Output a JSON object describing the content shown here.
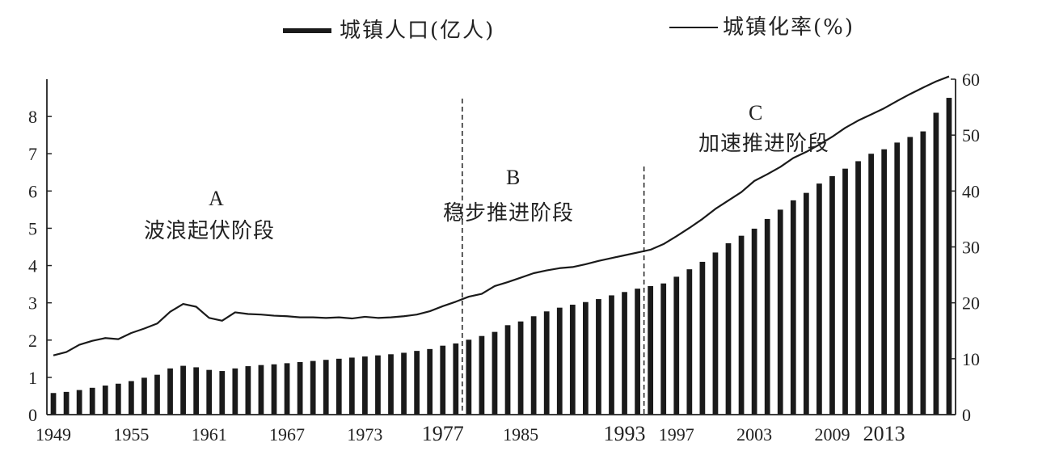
{
  "legend": {
    "population_label": "城镇人口(亿人)",
    "rate_label": "城镇化率(%)"
  },
  "annotations": {
    "a_letter": "A",
    "a_text": "波浪起伏阶段",
    "b_letter": "B",
    "b_text": "稳步推进阶段",
    "c_letter": "C",
    "c_text": "加速推进阶段"
  },
  "colors": {
    "bars": "#1a1a1a",
    "line": "#1a1a1a",
    "axis": "#222222"
  },
  "chart_data": {
    "type": "bar+line",
    "title": "",
    "x_tick_labels": [
      "1949",
      "1955",
      "1961",
      "1967",
      "1973",
      "1977",
      "1985",
      "1993",
      "1997",
      "2003",
      "2009",
      "2013"
    ],
    "x_tick_positions": [
      0,
      6,
      12,
      18,
      24,
      30,
      36,
      44,
      48,
      54,
      60,
      64
    ],
    "y_left": {
      "range": [
        0,
        9
      ],
      "ticks": [
        0,
        1,
        2,
        3,
        4,
        5,
        6,
        7,
        8
      ]
    },
    "y_right": {
      "range": [
        0,
        60
      ],
      "ticks": [
        0,
        10,
        20,
        30,
        40,
        50,
        60
      ]
    },
    "stage_dividers": [
      32,
      46
    ],
    "series": [
      {
        "name": "城镇人口(亿人)",
        "type": "bar",
        "axis": "left",
        "values": [
          0.58,
          0.61,
          0.66,
          0.72,
          0.78,
          0.83,
          0.9,
          0.99,
          1.07,
          1.24,
          1.31,
          1.27,
          1.2,
          1.17,
          1.24,
          1.3,
          1.33,
          1.35,
          1.38,
          1.41,
          1.44,
          1.47,
          1.5,
          1.53,
          1.56,
          1.59,
          1.62,
          1.66,
          1.71,
          1.76,
          1.85,
          1.91,
          2.01,
          2.11,
          2.22,
          2.4,
          2.5,
          2.64,
          2.77,
          2.87,
          2.95,
          3.02,
          3.1,
          3.2,
          3.29,
          3.38,
          3.45,
          3.52,
          3.7,
          3.9,
          4.1,
          4.35,
          4.6,
          4.8,
          4.99,
          5.25,
          5.5,
          5.75,
          5.95,
          6.2,
          6.4,
          6.6,
          6.8,
          7.0,
          7.12,
          7.3,
          7.45,
          7.6,
          8.1,
          8.5
        ]
      },
      {
        "name": "城镇化率(%)",
        "type": "line",
        "axis": "right",
        "values": [
          10.6,
          11.2,
          12.5,
          13.2,
          13.7,
          13.5,
          14.6,
          15.4,
          16.3,
          18.4,
          19.8,
          19.3,
          17.3,
          16.8,
          18.3,
          18.0,
          17.9,
          17.7,
          17.6,
          17.4,
          17.4,
          17.3,
          17.4,
          17.2,
          17.5,
          17.3,
          17.4,
          17.6,
          17.9,
          18.5,
          19.4,
          20.2,
          21.1,
          21.6,
          23.0,
          23.7,
          24.5,
          25.3,
          25.8,
          26.2,
          26.4,
          26.9,
          27.5,
          28.0,
          28.5,
          29.0,
          29.5,
          30.5,
          31.9,
          33.4,
          35.0,
          36.8,
          38.3,
          39.8,
          41.8,
          43.0,
          44.3,
          45.9,
          47.0,
          48.3,
          49.7,
          51.3,
          52.6,
          53.7,
          54.8,
          56.1,
          57.35,
          58.5,
          59.6,
          60.5
        ]
      }
    ]
  }
}
